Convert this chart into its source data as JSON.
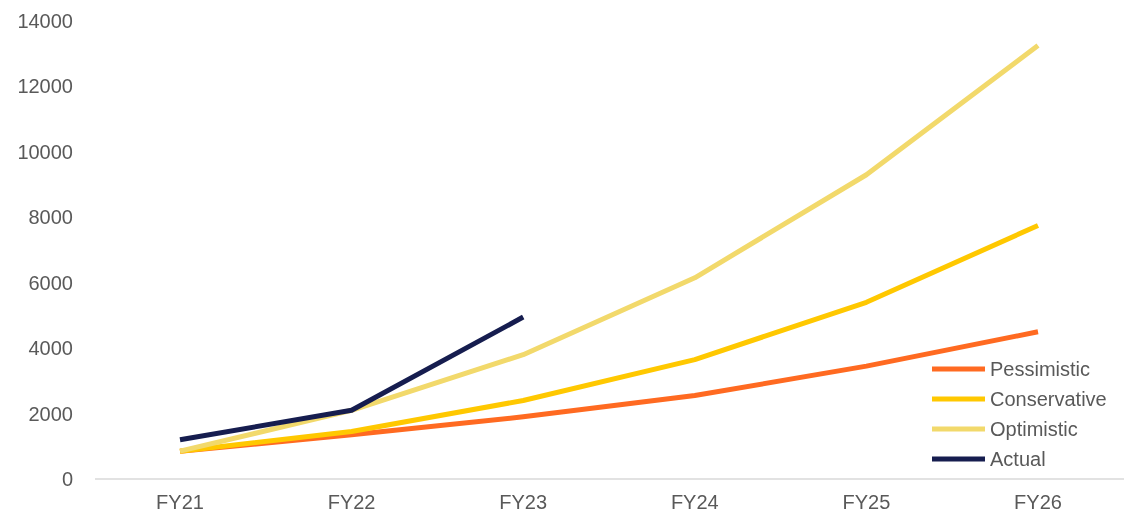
{
  "chart_data": {
    "type": "line",
    "categories": [
      "FY21",
      "FY22",
      "FY23",
      "FY24",
      "FY25",
      "FY26"
    ],
    "ylim": [
      0,
      14000
    ],
    "yticks": [
      0,
      2000,
      4000,
      6000,
      8000,
      10000,
      12000,
      14000
    ],
    "grid": false,
    "legend": "bottom right",
    "line_style": "solid",
    "marker": "none",
    "series": [
      {
        "name": "Pessimistic",
        "color": "#ff6a21",
        "values": [
          850,
          1350,
          1900,
          2550,
          3450,
          4500
        ]
      },
      {
        "name": "Conservative",
        "color": "#ffc800",
        "values": [
          850,
          1450,
          2400,
          3650,
          5400,
          7750
        ]
      },
      {
        "name": "Optimistic",
        "color": "#f2d96b",
        "values": [
          850,
          2100,
          3800,
          6150,
          9300,
          13250
        ]
      },
      {
        "name": "Actual",
        "color": "#161d4f",
        "values": [
          1200,
          2100,
          4950,
          null,
          null,
          null
        ]
      }
    ]
  }
}
